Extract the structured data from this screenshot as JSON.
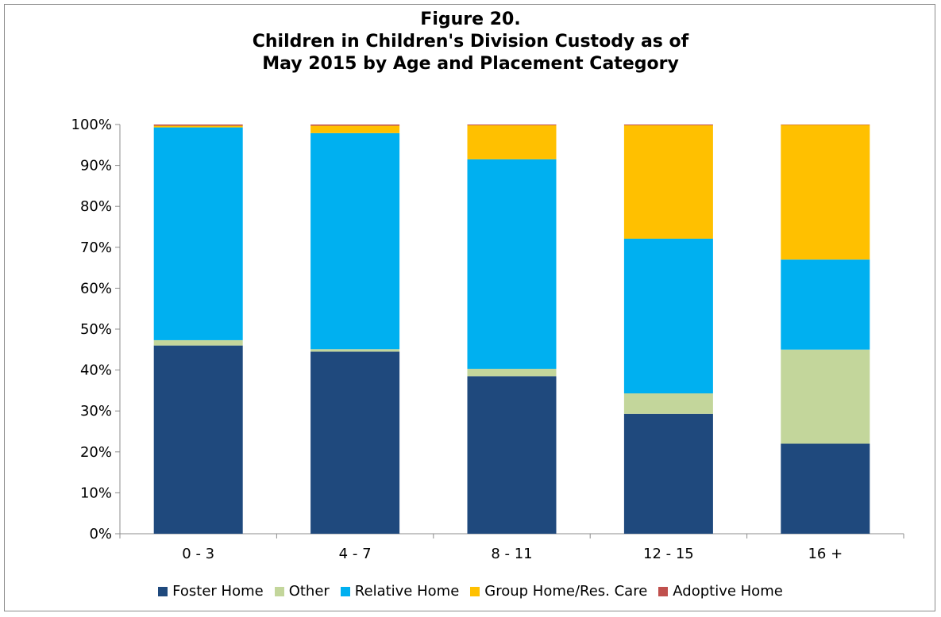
{
  "chart_data": {
    "type": "bar",
    "stacked": true,
    "title_lines": [
      "Figure 20.",
      "Children in Children's Division Custody as of",
      "May 2015 by Age and Placement Category"
    ],
    "categories": [
      "0 - 3",
      "4 - 7",
      "8 - 11",
      "12 - 15",
      "16 +"
    ],
    "ylim": [
      0,
      100
    ],
    "yticks": [
      "0%",
      "10%",
      "20%",
      "30%",
      "40%",
      "50%",
      "60%",
      "70%",
      "80%",
      "90%",
      "100%"
    ],
    "grid": false,
    "legend_position": "bottom",
    "series": [
      {
        "name": "Foster Home",
        "color": "#1f497d",
        "values": [
          46,
          44.5,
          38.5,
          29.3,
          22
        ]
      },
      {
        "name": "Other",
        "color": "#c3d69b",
        "values": [
          1.3,
          0.6,
          1.8,
          5,
          23
        ]
      },
      {
        "name": "Relative Home",
        "color": "#00b0f0",
        "values": [
          52,
          52.8,
          51.2,
          37.8,
          22
        ]
      },
      {
        "name": "Group Home/Res. Care",
        "color": "#ffc000",
        "values": [
          0.4,
          1.8,
          8.3,
          27.7,
          32.9
        ]
      },
      {
        "name": "Adoptive Home",
        "color": "#c0504d",
        "values": [
          0.3,
          0.3,
          0.2,
          0.2,
          0.1
        ]
      }
    ]
  }
}
